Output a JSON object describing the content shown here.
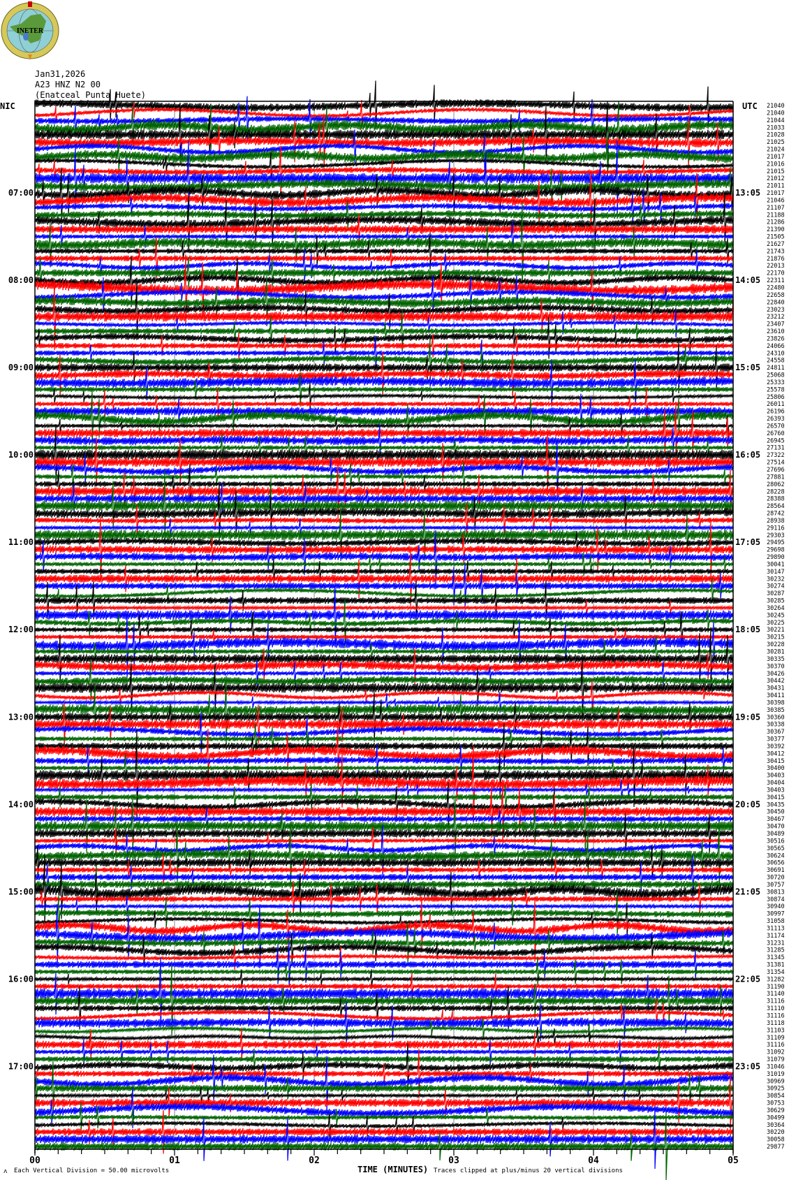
{
  "header": {
    "logo_text": "INETER",
    "date": "Jan31,2026",
    "station": "A23 HNZ N2 00",
    "location": "(Enatceal Punta Huete)",
    "left_zone": "NIC",
    "right_zone": "UTC"
  },
  "footer": {
    "scale_note": "Each Vertical Division =   50.00 microvolts",
    "xlabel": "TIME (MINUTES)",
    "clip_note": "Traces clipped at plus/minus 20 vertical divisions"
  },
  "chart_data": {
    "type": "helicorder",
    "xlabel": "TIME (MINUTES)",
    "x_ticks": [
      "00",
      "01",
      "02",
      "03",
      "04",
      "05"
    ],
    "xlim": [
      0,
      5
    ],
    "minutes_per_row": 5,
    "rows_per_hour": 12,
    "trace_colors": [
      "#000000",
      "#ff0000",
      "#0000ff",
      "#006400"
    ],
    "grid": "vertical lines each minute",
    "left_hour_labels": [
      "07:00",
      "08:00",
      "09:00",
      "10:00",
      "11:00",
      "12:00",
      "13:00",
      "14:00",
      "15:00",
      "16:00",
      "17:00"
    ],
    "right_hour_labels": [
      "13:05",
      "14:05",
      "15:05",
      "16:05",
      "17:05",
      "18:05",
      "19:05",
      "20:05",
      "21:05",
      "22:05",
      "23:05"
    ],
    "trace_values": [
      "21040",
      "21040",
      "21044",
      "21033",
      "21028",
      "21025",
      "21024",
      "21017",
      "21016",
      "21015",
      "21012",
      "21011",
      "21017",
      "21046",
      "21107",
      "21188",
      "21286",
      "21390",
      "21505",
      "21627",
      "21743",
      "21876",
      "22013",
      "22170",
      "22311",
      "22480",
      "22658",
      "22840",
      "23023",
      "23212",
      "23407",
      "23610",
      "23826",
      "24066",
      "24310",
      "24558",
      "24811",
      "25068",
      "25333",
      "25578",
      "25806",
      "26011",
      "26196",
      "26393",
      "26570",
      "26760",
      "26945",
      "27131",
      "27322",
      "27514",
      "27696",
      "27881",
      "28062",
      "28228",
      "28388",
      "28564",
      "28742",
      "28938",
      "29116",
      "29303",
      "29495",
      "29698",
      "29890",
      "30041",
      "30147",
      "30232",
      "30274",
      "30287",
      "30285",
      "30264",
      "30245",
      "30225",
      "30221",
      "30215",
      "30228",
      "30281",
      "30335",
      "30370",
      "30426",
      "30442",
      "30431",
      "30411",
      "30398",
      "30385",
      "30360",
      "30338",
      "30367",
      "30377",
      "30392",
      "30412",
      "30415",
      "30400",
      "30403",
      "30404",
      "30403",
      "30415",
      "30435",
      "30450",
      "30467",
      "30470",
      "30489",
      "30516",
      "30565",
      "30624",
      "30656",
      "30691",
      "30720",
      "30757",
      "30813",
      "30874",
      "30940",
      "30997",
      "31058",
      "31113",
      "31174",
      "31231",
      "31285",
      "31345",
      "31381",
      "31354",
      "31282",
      "31190",
      "31140",
      "31116",
      "31110",
      "31116",
      "31118",
      "31103",
      "31109",
      "31116",
      "31092",
      "31079",
      "31046",
      "31019",
      "30969",
      "30925",
      "30854",
      "30753",
      "30629",
      "30499",
      "30364",
      "30220",
      "30058",
      "29877"
    ]
  }
}
